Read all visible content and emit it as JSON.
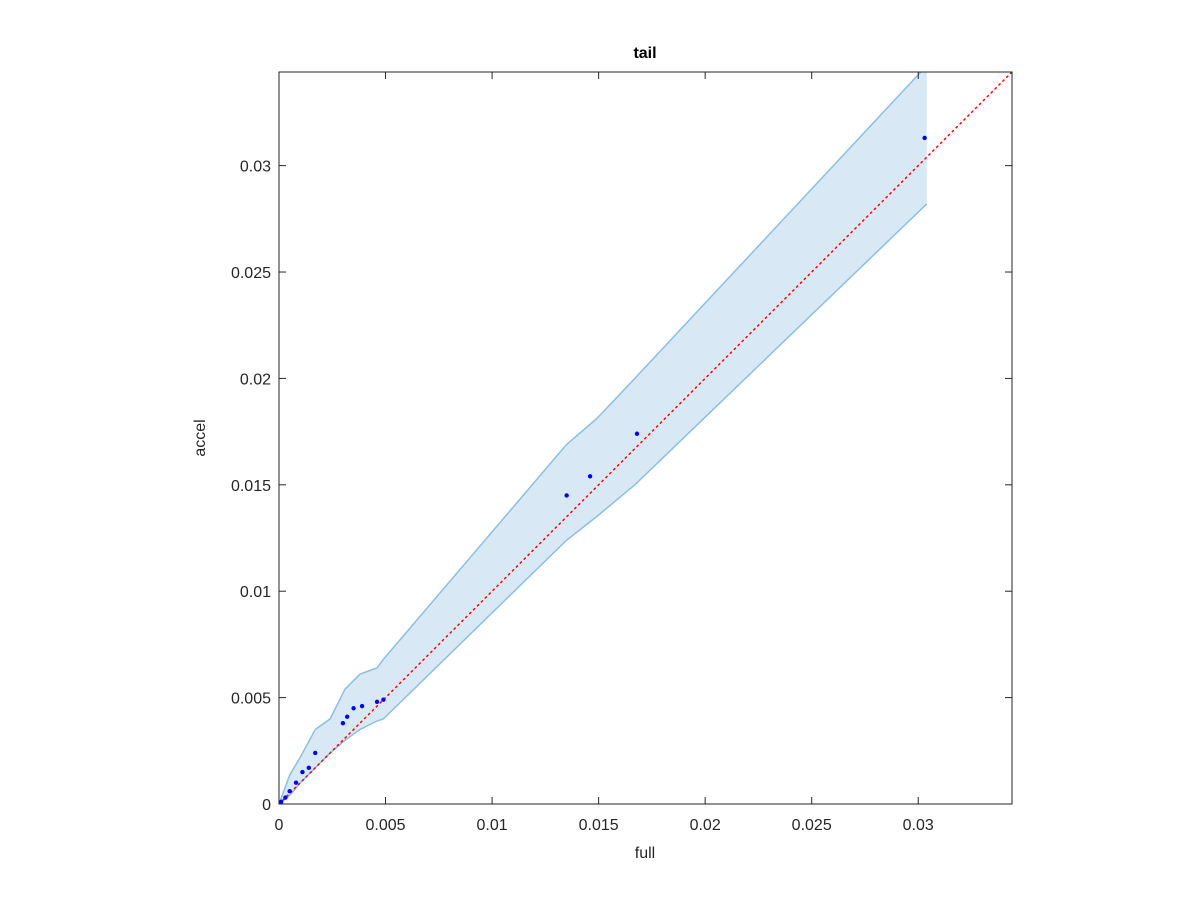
{
  "chart_data": {
    "type": "scatter",
    "title": "tail",
    "xlabel": "full",
    "ylabel": "accel",
    "xlim": [
      0,
      0.0344
    ],
    "ylim": [
      0,
      0.0344
    ],
    "xticks": [
      0,
      0.005,
      0.01,
      0.015,
      0.02,
      0.025,
      0.03
    ],
    "yticks": [
      0,
      0.005,
      0.01,
      0.015,
      0.02,
      0.025,
      0.03
    ],
    "band": {
      "color": "#d9e8f5",
      "edge_color": "#8dbfe0",
      "x": [
        0,
        0.0005,
        0.001,
        0.0017,
        0.0024,
        0.0031,
        0.0038,
        0.0046,
        0.0049,
        0.0135,
        0.0149,
        0.0167,
        0.0304
      ],
      "upper": [
        0,
        0.00136,
        0.0022,
        0.0035,
        0.004,
        0.0054,
        0.0061,
        0.0064,
        0.0068,
        0.0169,
        0.0181,
        0.02,
        0.0347
      ],
      "lower": [
        0,
        0.0004,
        0.001,
        0.0017,
        0.0024,
        0.003,
        0.0035,
        0.0039,
        0.004,
        0.0124,
        0.0135,
        0.015,
        0.0282
      ]
    },
    "reference_line": {
      "color": "#ff0000",
      "x": [
        0,
        0.0344
      ],
      "y": [
        0,
        0.0344
      ]
    },
    "points": {
      "color": "#0000ff",
      "x": [
        0,
        0.0001,
        0.0003,
        0.0005,
        0.0008,
        0.0011,
        0.0014,
        0.0017,
        0.003,
        0.0032,
        0.0035,
        0.0039,
        0.0046,
        0.0049,
        0.0135,
        0.0146,
        0.0168,
        0.0303
      ],
      "y": [
        0,
        0.0001,
        0.0003,
        0.0006,
        0.001,
        0.0015,
        0.0017,
        0.0024,
        0.0038,
        0.0041,
        0.0045,
        0.0046,
        0.0048,
        0.0049,
        0.0145,
        0.0154,
        0.0174,
        0.0313
      ]
    }
  }
}
